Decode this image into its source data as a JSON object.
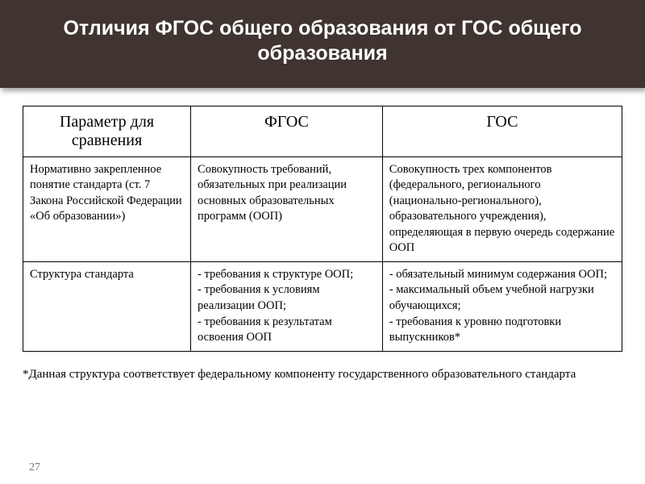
{
  "header": {
    "title": "Отличия ФГОС общего образования от ГОС общего образования"
  },
  "table": {
    "columns": [
      {
        "label": "Параметр для сравнения",
        "width_pct": 28
      },
      {
        "label": "ФГОС",
        "width_pct": 32
      },
      {
        "label": "ГОС",
        "width_pct": 40
      }
    ],
    "rows": [
      [
        "Нормативно закрепленное понятие стандарта (ст. 7 Закона Российской Федерации «Об образовании»)",
        "Совокупность требований, обязательных при реализации основных образовательных программ (ООП)",
        "Совокупность трех компонентов (федерального, регионального (национально-регионального), образовательного учреждения), определяющая в первую очередь содержание ООП"
      ],
      [
        "Структура стандарта",
        "- требования к структуре ООП;\n- требования к условиям реализации ООП;\n- требования к результатам освоения ООП",
        "- обязательный минимум содержания ООП;\n- максимальный объем учебной нагрузки обучающихся;\n- требования к уровню подготовки выпускников*"
      ]
    ]
  },
  "footnote": "*Данная структура соответствует федеральному компоненту государственного образовательного стандарта",
  "page_number": "27",
  "colors": {
    "header_bg": "#3f3430",
    "header_text": "#ffffff",
    "body_bg": "#ffffff",
    "border": "#000000",
    "text": "#000000",
    "pagenum": "#777777"
  },
  "typography": {
    "title_font": "Arial",
    "title_size_pt": 25,
    "header_cell_size_pt": 20,
    "body_cell_size_pt": 14.5,
    "footnote_size_pt": 15
  }
}
